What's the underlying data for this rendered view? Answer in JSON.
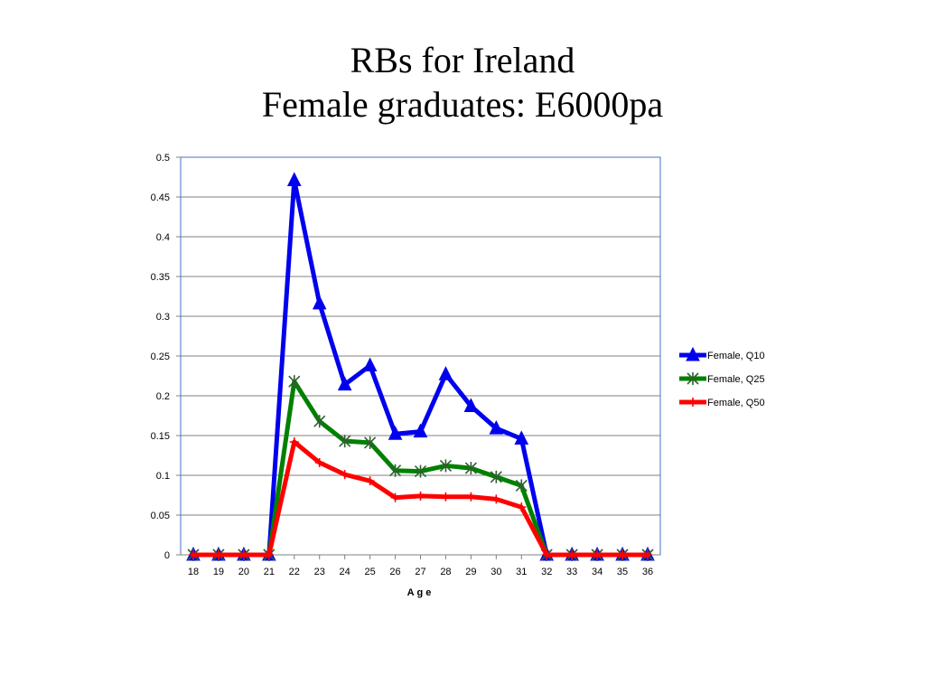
{
  "slide": {
    "title_line1": "RBs for Ireland",
    "title_line2": "Female graduates: E6000pa"
  },
  "chart_data": {
    "type": "line",
    "title": "RBs for Ireland Female graduates: E6000pa",
    "xlabel": "Age",
    "ylabel": "",
    "x": [
      18,
      19,
      20,
      21,
      22,
      23,
      24,
      25,
      26,
      27,
      28,
      29,
      30,
      31,
      32,
      33,
      34,
      35,
      36
    ],
    "ylim": [
      0,
      0.5
    ],
    "yticks": [
      0,
      0.05,
      0.1,
      0.15,
      0.2,
      0.25,
      0.3,
      0.35,
      0.4,
      0.45,
      0.5
    ],
    "ytick_labels": [
      "0",
      "0.05",
      "0.1",
      "0.15",
      "0.2",
      "0.25",
      "0.3",
      "0.35",
      "0.4",
      "0.45",
      "0.5"
    ],
    "grid": "horizontal",
    "legend_position": "right",
    "series": [
      {
        "name": "Female, Q10",
        "color": "#0000ee",
        "marker": "triangle",
        "values": [
          0,
          0,
          0,
          0,
          0.471,
          0.316,
          0.214,
          0.238,
          0.152,
          0.155,
          0.227,
          0.187,
          0.159,
          0.146,
          0,
          0,
          0,
          0,
          0
        ]
      },
      {
        "name": "Female, Q25",
        "color": "#008000",
        "marker": "star",
        "values": [
          0,
          0,
          0,
          0,
          0.218,
          0.168,
          0.143,
          0.141,
          0.106,
          0.105,
          0.112,
          0.109,
          0.098,
          0.087,
          0,
          0,
          0,
          0,
          0
        ]
      },
      {
        "name": "Female, Q50",
        "color": "#ff0000",
        "marker": "plus",
        "values": [
          0,
          0,
          0,
          0,
          0.142,
          0.116,
          0.101,
          0.093,
          0.072,
          0.074,
          0.073,
          0.073,
          0.07,
          0.06,
          0,
          0,
          0,
          0,
          0
        ]
      }
    ]
  }
}
